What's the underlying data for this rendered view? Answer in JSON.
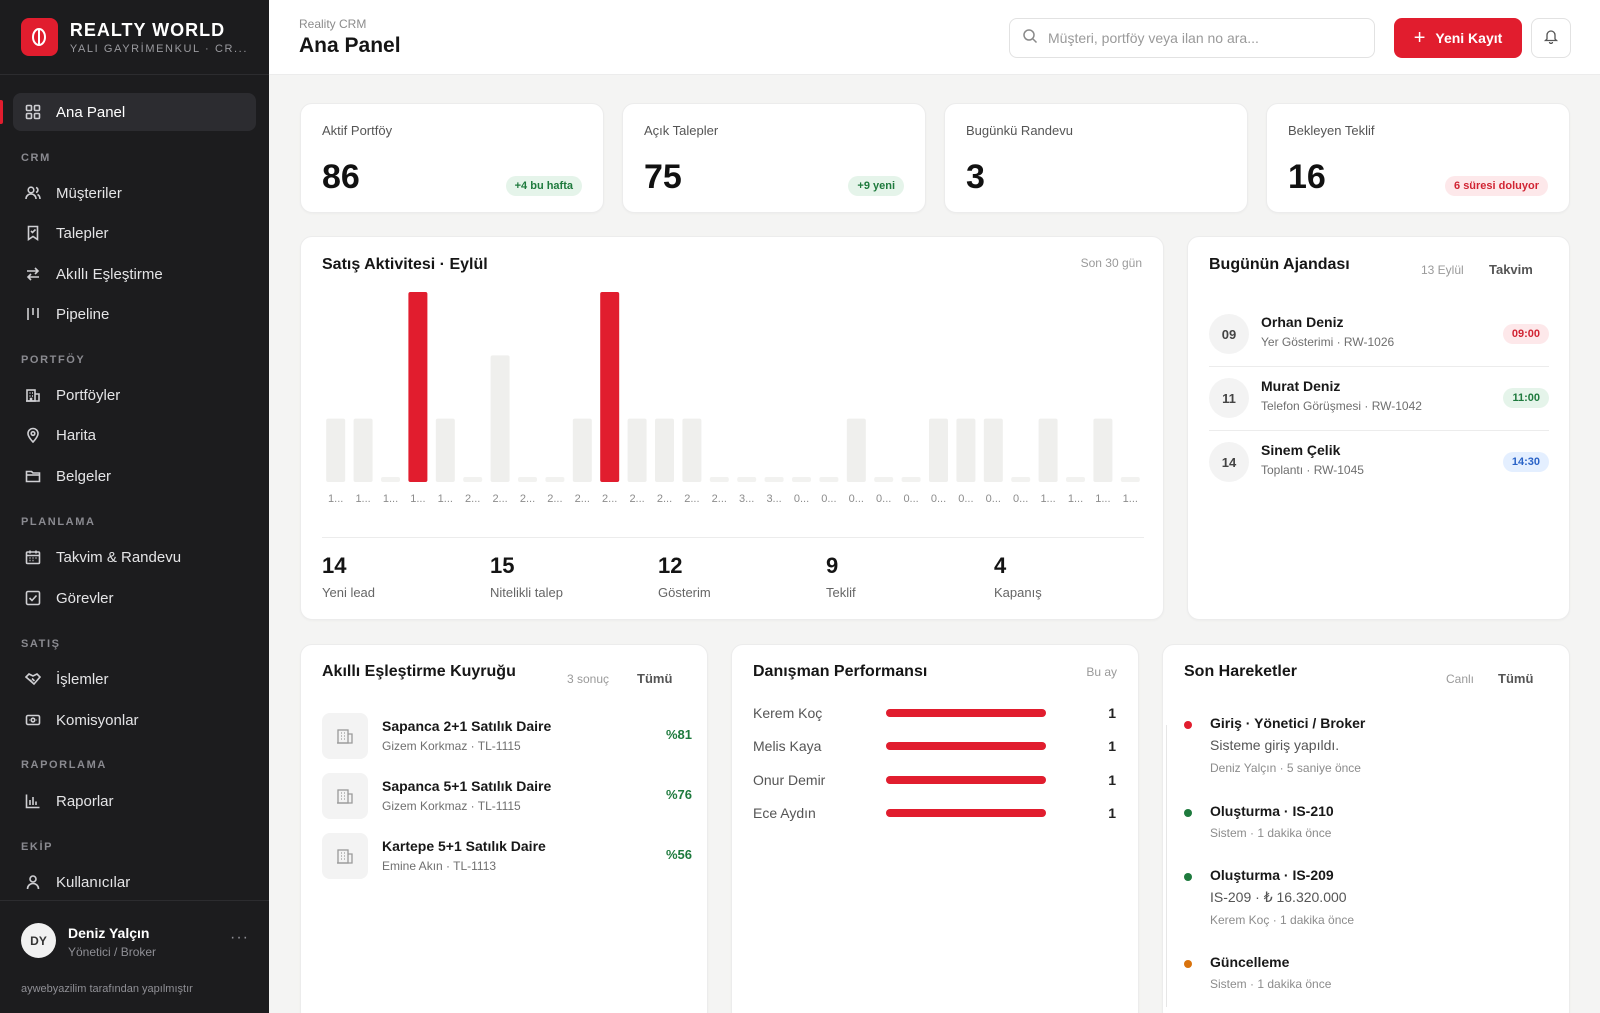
{
  "brand": {
    "name": "REALTY WORLD",
    "sub": "YALI GAYRİMENKUL · CR..."
  },
  "sidebar": {
    "sections": [
      "CRM",
      "PORTFÖY",
      "PLANLAMA",
      "SATIŞ",
      "RAPORLAMA",
      "EKİP"
    ],
    "items": [
      {
        "label": "Ana Panel",
        "icon": "grid-icon",
        "active": true
      },
      {
        "label": "Müşteriler",
        "icon": "users-icon"
      },
      {
        "label": "Talepler",
        "icon": "bookmark-icon"
      },
      {
        "label": "Akıllı Eşleştirme",
        "icon": "swap-icon"
      },
      {
        "label": "Pipeline",
        "icon": "pipeline-icon"
      },
      {
        "label": "Portföyler",
        "icon": "building-icon"
      },
      {
        "label": "Harita",
        "icon": "map-pin-icon"
      },
      {
        "label": "Belgeler",
        "icon": "folder-icon"
      },
      {
        "label": "Takvim & Randevu",
        "icon": "calendar-icon"
      },
      {
        "label": "Görevler",
        "icon": "checkbox-icon"
      },
      {
        "label": "İşlemler",
        "icon": "handshake-icon"
      },
      {
        "label": "Komisyonlar",
        "icon": "wallet-icon"
      },
      {
        "label": "Raporlar",
        "icon": "bar-chart-icon"
      },
      {
        "label": "Kullanıcılar",
        "icon": "user-icon"
      }
    ],
    "user": {
      "initials": "DY",
      "name": "Deniz Yalçın",
      "role": "Yönetici / Broker",
      "more": "···"
    },
    "credit": "aywebyazilim tarafından yapılmıştır"
  },
  "header": {
    "crumb": "Reality CRM",
    "title": "Ana Panel",
    "search_placeholder": "Müşteri, portföy veya ilan no ara...",
    "new_label": "Yeni Kayıt"
  },
  "stats": [
    {
      "label": "Aktif Portföy",
      "value": "86",
      "badge": "+4 bu hafta",
      "badge_type": "green"
    },
    {
      "label": "Açık Talepler",
      "value": "75",
      "badge": "+9 yeni",
      "badge_type": "green"
    },
    {
      "label": "Bugünkü Randevu",
      "value": "3",
      "badge": "",
      "badge_type": ""
    },
    {
      "label": "Bekleyen Teklif",
      "value": "16",
      "badge": "6 süresi doluyor",
      "badge_type": "red"
    }
  ],
  "sales": {
    "title": "Satış Aktivitesi · Eylül",
    "range": "Son 30 gün",
    "kpis": [
      {
        "value": "14",
        "label": "Yeni lead"
      },
      {
        "value": "15",
        "label": "Nitelikli talep"
      },
      {
        "value": "12",
        "label": "Gösterim"
      },
      {
        "value": "9",
        "label": "Teklif"
      },
      {
        "value": "4",
        "label": "Kapanış"
      }
    ]
  },
  "chart_data": {
    "type": "bar",
    "title": "Satış Aktivitesi · Eylül",
    "categories": [
      "1...",
      "1...",
      "1...",
      "1...",
      "1...",
      "2...",
      "2...",
      "2...",
      "2...",
      "2...",
      "2...",
      "2...",
      "2...",
      "2...",
      "2...",
      "3...",
      "3...",
      "0...",
      "0...",
      "0...",
      "0...",
      "0...",
      "0...",
      "0...",
      "0...",
      "0...",
      "1...",
      "1...",
      "1...",
      "1..."
    ],
    "values": [
      2,
      2,
      0,
      6,
      2,
      0,
      4,
      0,
      0,
      2,
      6,
      2,
      2,
      2,
      0,
      0,
      0,
      0,
      0,
      2,
      0,
      0,
      2,
      2,
      2,
      0,
      2,
      0,
      2,
      0
    ],
    "highlight": [
      3,
      10
    ],
    "ylim": [
      0,
      6
    ],
    "colors": {
      "normal": "#efefed",
      "highlight": "#e11d2e",
      "zero": "#f2f2f0"
    }
  },
  "agenda": {
    "title": "Bugünün Ajandası",
    "date": "13 Eylül",
    "link": "Takvim",
    "items": [
      {
        "day": "09",
        "name": "Orhan Deniz",
        "sub": "Yer Gösterimi · RW-1026",
        "time": "09:00",
        "type": "red"
      },
      {
        "day": "11",
        "name": "Murat Deniz",
        "sub": "Telefon Görüşmesi · RW-1042",
        "time": "11:00",
        "type": "green"
      },
      {
        "day": "14",
        "name": "Sinem Çelik",
        "sub": "Toplantı · RW-1045",
        "time": "14:30",
        "type": "blue"
      }
    ]
  },
  "matching": {
    "title": "Akıllı Eşleştirme Kuyruğu",
    "count": "3 sonuç",
    "link": "Tümü",
    "items": [
      {
        "title": "Sapanca 2+1 Satılık Daire",
        "sub": "Gizem Korkmaz · TL-1115",
        "pct": "%81"
      },
      {
        "title": "Sapanca 5+1 Satılık Daire",
        "sub": "Gizem Korkmaz · TL-1115",
        "pct": "%76"
      },
      {
        "title": "Kartepe 5+1 Satılık Daire",
        "sub": "Emine Akın · TL-1113",
        "pct": "%56"
      }
    ]
  },
  "performance": {
    "title": "Danışman Performansı",
    "period": "Bu ay",
    "items": [
      {
        "name": "Kerem Koç",
        "value": "1",
        "ratio": 1
      },
      {
        "name": "Melis Kaya",
        "value": "1",
        "ratio": 1
      },
      {
        "name": "Onur Demir",
        "value": "1",
        "ratio": 1
      },
      {
        "name": "Ece Aydın",
        "value": "1",
        "ratio": 1
      }
    ]
  },
  "activity": {
    "title": "Son Hareketler",
    "live": "Canlı",
    "link": "Tümü",
    "items": [
      {
        "title": "Giriş · Yönetici / Broker",
        "desc": "Sisteme giriş yapıldı.",
        "meta": "Deniz Yalçın · 5 saniye önce",
        "color": "#e11d2e"
      },
      {
        "title": "Oluşturma · IS-210",
        "desc": "",
        "meta": "Sistem · 1 dakika önce",
        "color": "#1e7a3d"
      },
      {
        "title": "Oluşturma · IS-209",
        "desc": "IS-209 · ₺ 16.320.000",
        "meta": "Kerem Koç · 1 dakika önce",
        "color": "#1e7a3d"
      },
      {
        "title": "Güncelleme",
        "desc": "",
        "meta": "Sistem · 1 dakika önce",
        "color": "#d9730d"
      }
    ]
  }
}
